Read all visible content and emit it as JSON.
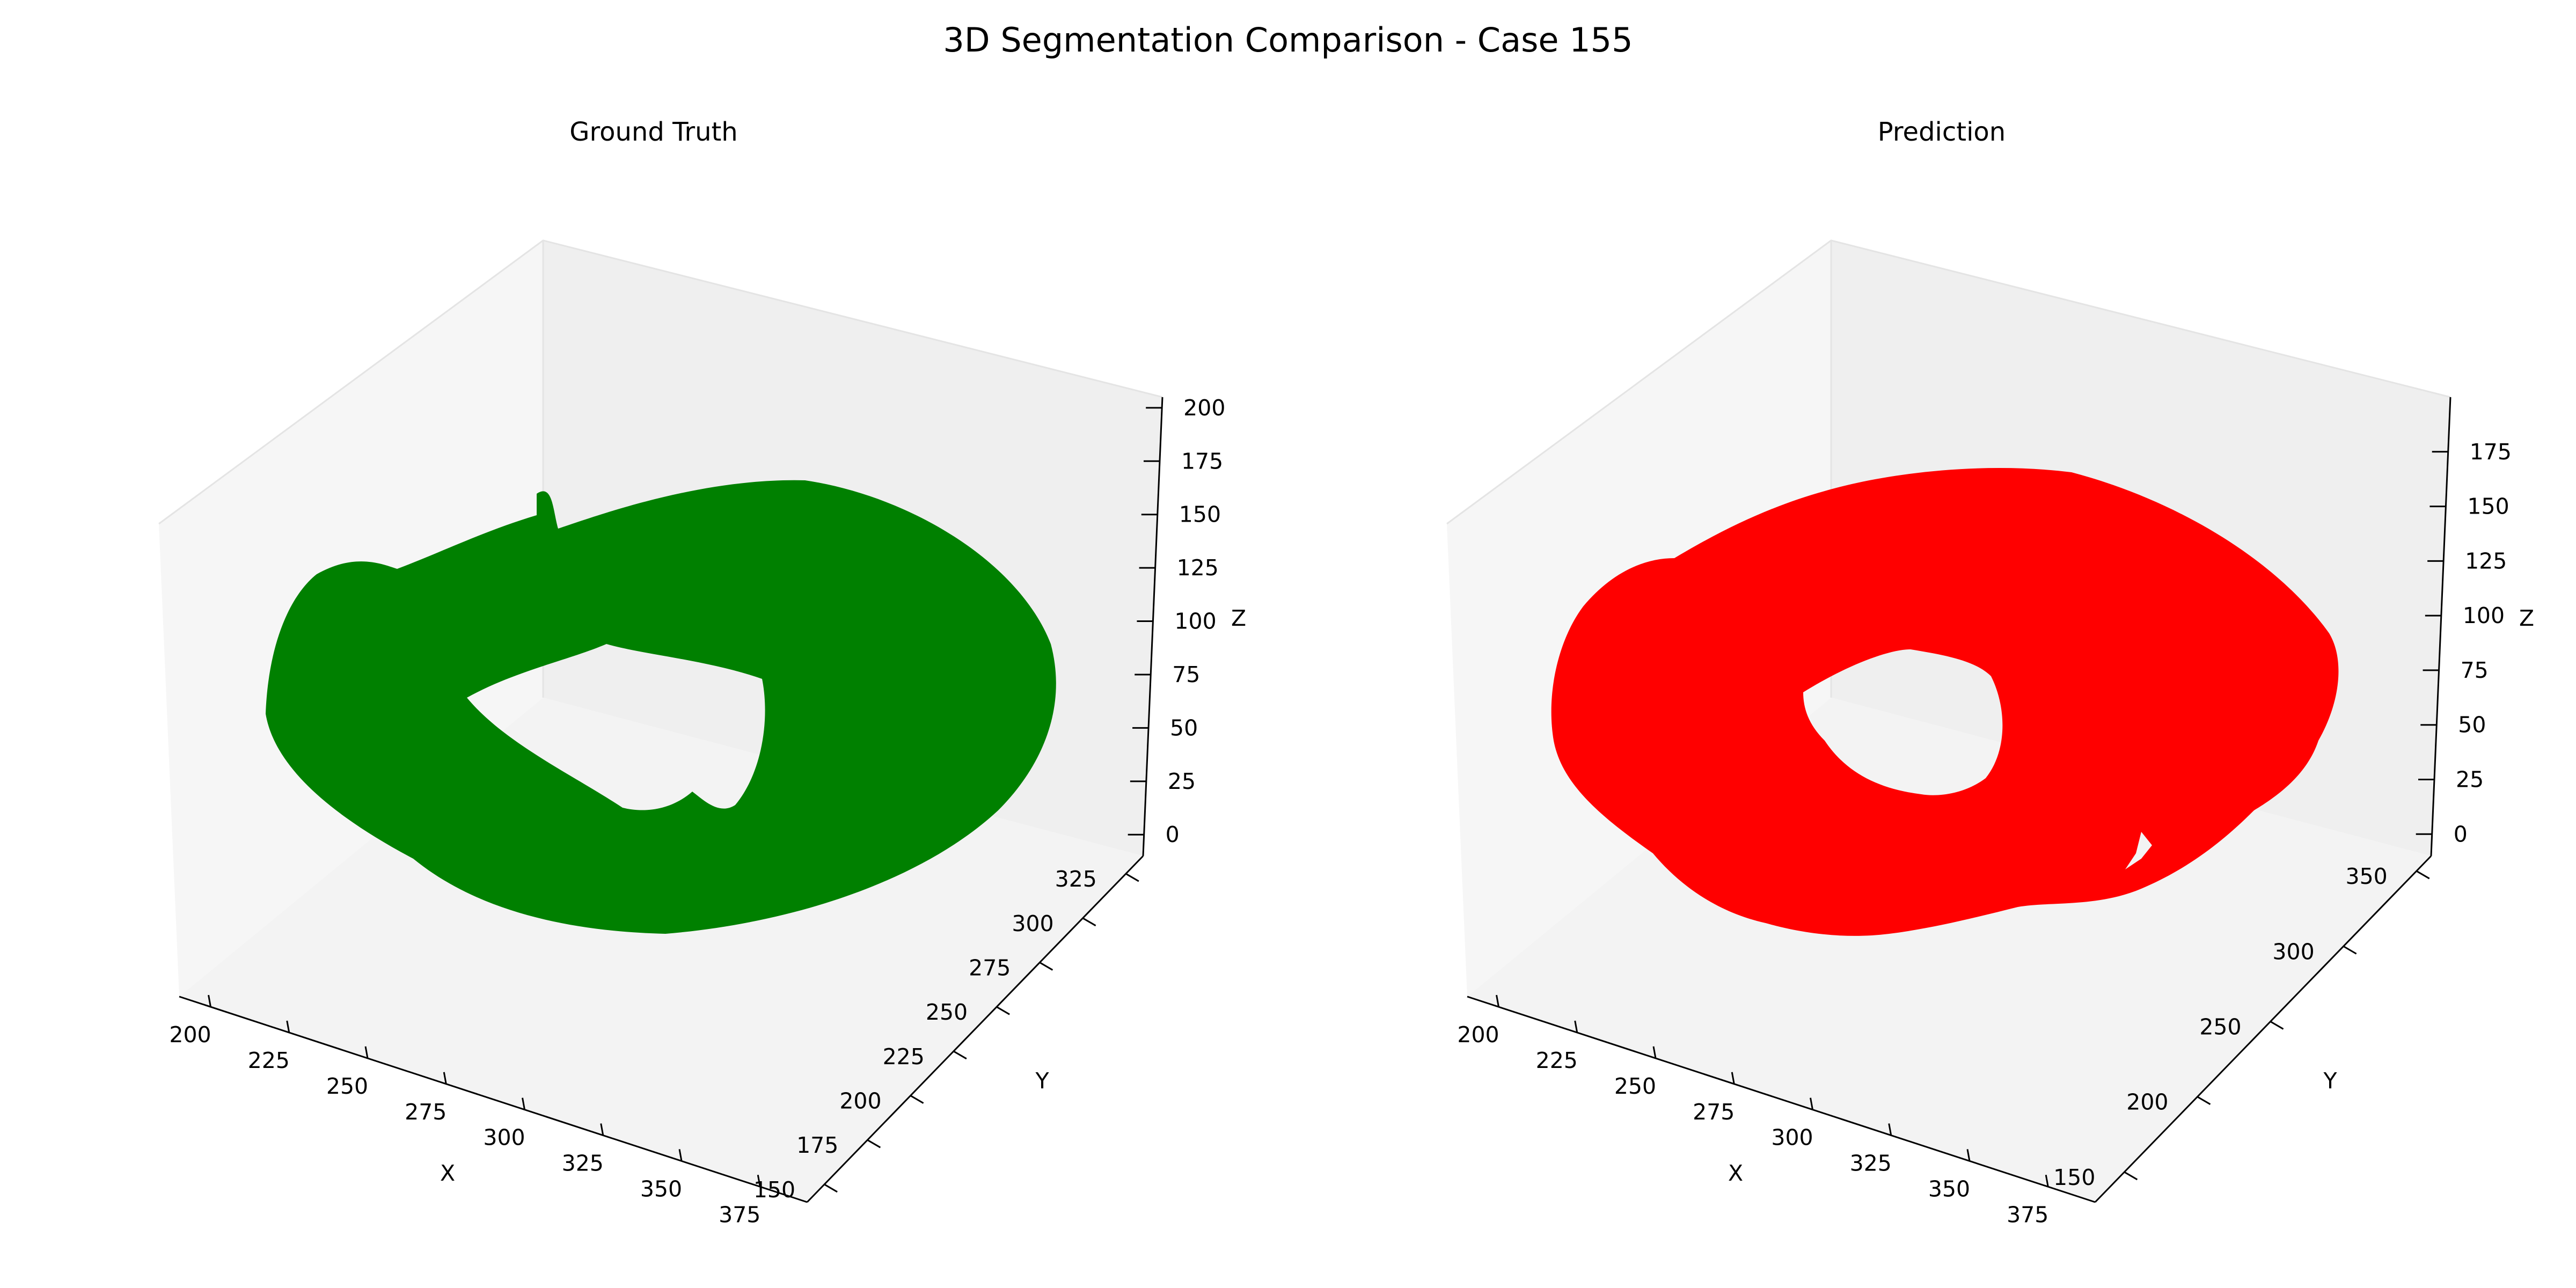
{
  "figure": {
    "title": "3D Segmentation Comparison - Case 155"
  },
  "chart_data": [
    {
      "type": "scatter",
      "subtype": "3d-voxel",
      "title": "Ground Truth",
      "color": "#008000",
      "xlabel": "X",
      "ylabel": "Y",
      "zlabel": "Z",
      "x_ticks": [
        200,
        225,
        250,
        275,
        300,
        325,
        350,
        375
      ],
      "y_ticks": [
        150,
        175,
        200,
        225,
        250,
        275,
        300,
        325
      ],
      "z_ticks": [
        0,
        25,
        50,
        75,
        100,
        125,
        150,
        175,
        200
      ],
      "xlim": [
        190,
        390
      ],
      "ylim": [
        140,
        335
      ],
      "zlim": [
        -10,
        205
      ],
      "shape": "ring",
      "grid": false,
      "legend": "none"
    },
    {
      "type": "scatter",
      "subtype": "3d-voxel",
      "title": "Prediction",
      "color": "#ff0000",
      "xlabel": "X",
      "ylabel": "Y",
      "zlabel": "Z",
      "x_ticks": [
        200,
        225,
        250,
        275,
        300,
        325,
        350,
        375
      ],
      "y_ticks": [
        150,
        200,
        250,
        300,
        350
      ],
      "z_ticks": [
        0,
        25,
        50,
        75,
        100,
        125,
        150,
        175
      ],
      "xlim": [
        190,
        390
      ],
      "ylim": [
        130,
        360
      ],
      "zlim": [
        -10,
        200
      ],
      "shape": "ring",
      "grid": false,
      "legend": "none"
    }
  ]
}
